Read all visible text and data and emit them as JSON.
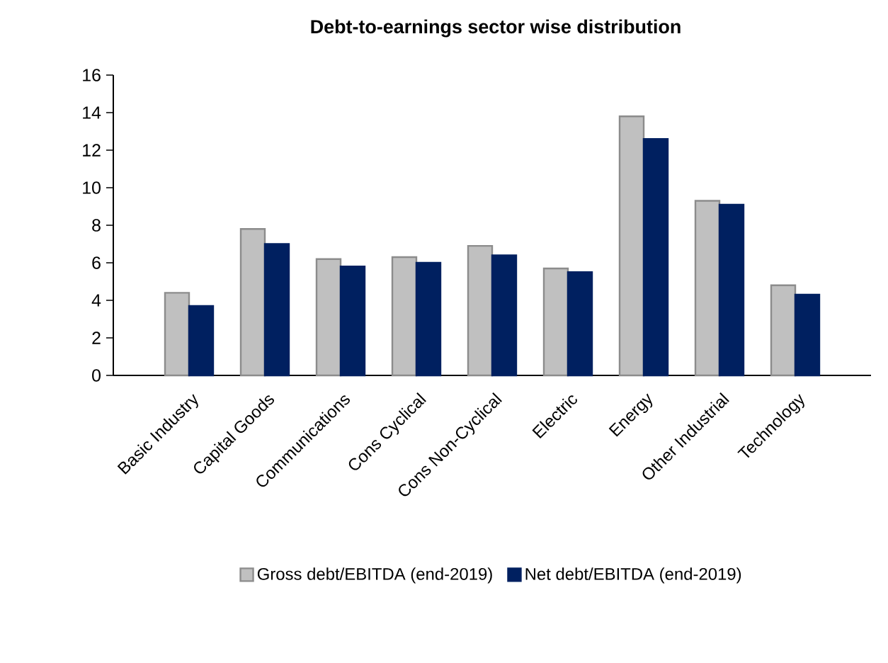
{
  "chart_data": {
    "type": "bar",
    "title": "Debt-to-earnings sector wise distribution",
    "categories": [
      "Basic Industry",
      "Capital Goods",
      "Communications",
      "Cons Cyclical",
      "Cons Non-Cyclical",
      "Electric",
      "Energy",
      "Other Industrial",
      "Technology"
    ],
    "series": [
      {
        "name": "Gross debt/EBITDA (end-2019)",
        "color": "#c0c0c0",
        "values": [
          4.4,
          7.8,
          6.2,
          6.3,
          6.9,
          5.7,
          13.8,
          9.3,
          4.8
        ]
      },
      {
        "name": "Net debt/EBITDA (end-2019)",
        "color": "#002060",
        "values": [
          3.7,
          7.0,
          5.8,
          6.0,
          6.4,
          5.5,
          12.6,
          9.1,
          4.3
        ]
      }
    ],
    "ylim": [
      0,
      16
    ],
    "yticks": [
      0,
      2,
      4,
      6,
      8,
      10,
      12,
      14,
      16
    ],
    "grid": false,
    "legend": "bottom"
  }
}
